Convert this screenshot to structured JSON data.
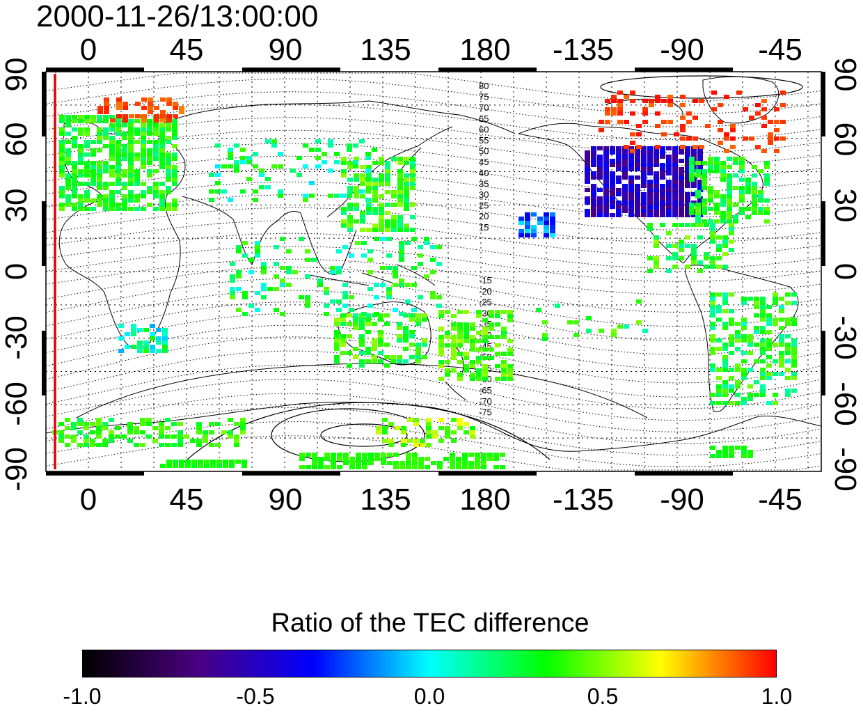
{
  "title": "2000-11-26/13:00:00",
  "map": {
    "top_axis_labels": [
      "0",
      "45",
      "90",
      "135",
      "180",
      "-135",
      "-90",
      "-45"
    ],
    "bottom_axis_labels": [
      "0",
      "45",
      "90",
      "135",
      "180",
      "-135",
      "-90",
      "-45"
    ],
    "left_axis_labels": [
      "90",
      "60",
      "30",
      "0",
      "-30",
      "-60",
      "-90"
    ],
    "right_axis_labels": [
      "90",
      "60",
      "30",
      "0",
      "-30",
      "-60",
      "-90"
    ],
    "contour_labels_north": [
      "80",
      "75",
      "70",
      "65",
      "60",
      "55",
      "50",
      "45",
      "40",
      "35",
      "30",
      "25",
      "20",
      "15"
    ],
    "contour_labels_south": [
      "-15",
      "-20",
      "-25",
      "-30",
      "-35",
      "-40",
      "-45",
      "-50",
      "-55",
      "-60",
      "-65",
      "-70",
      "-75"
    ],
    "marker_line_color": "#e00000",
    "frame_color": "#000000"
  },
  "colorbar": {
    "title": "Ratio of the TEC difference",
    "ticks": [
      "-1.0",
      "-0.5",
      "0.0",
      "0.5",
      "1.0"
    ],
    "colors": [
      "#000000",
      "#4b0082",
      "#0000ff",
      "#00ffff",
      "#00ff00",
      "#ffff00",
      "#ff0000"
    ]
  }
}
